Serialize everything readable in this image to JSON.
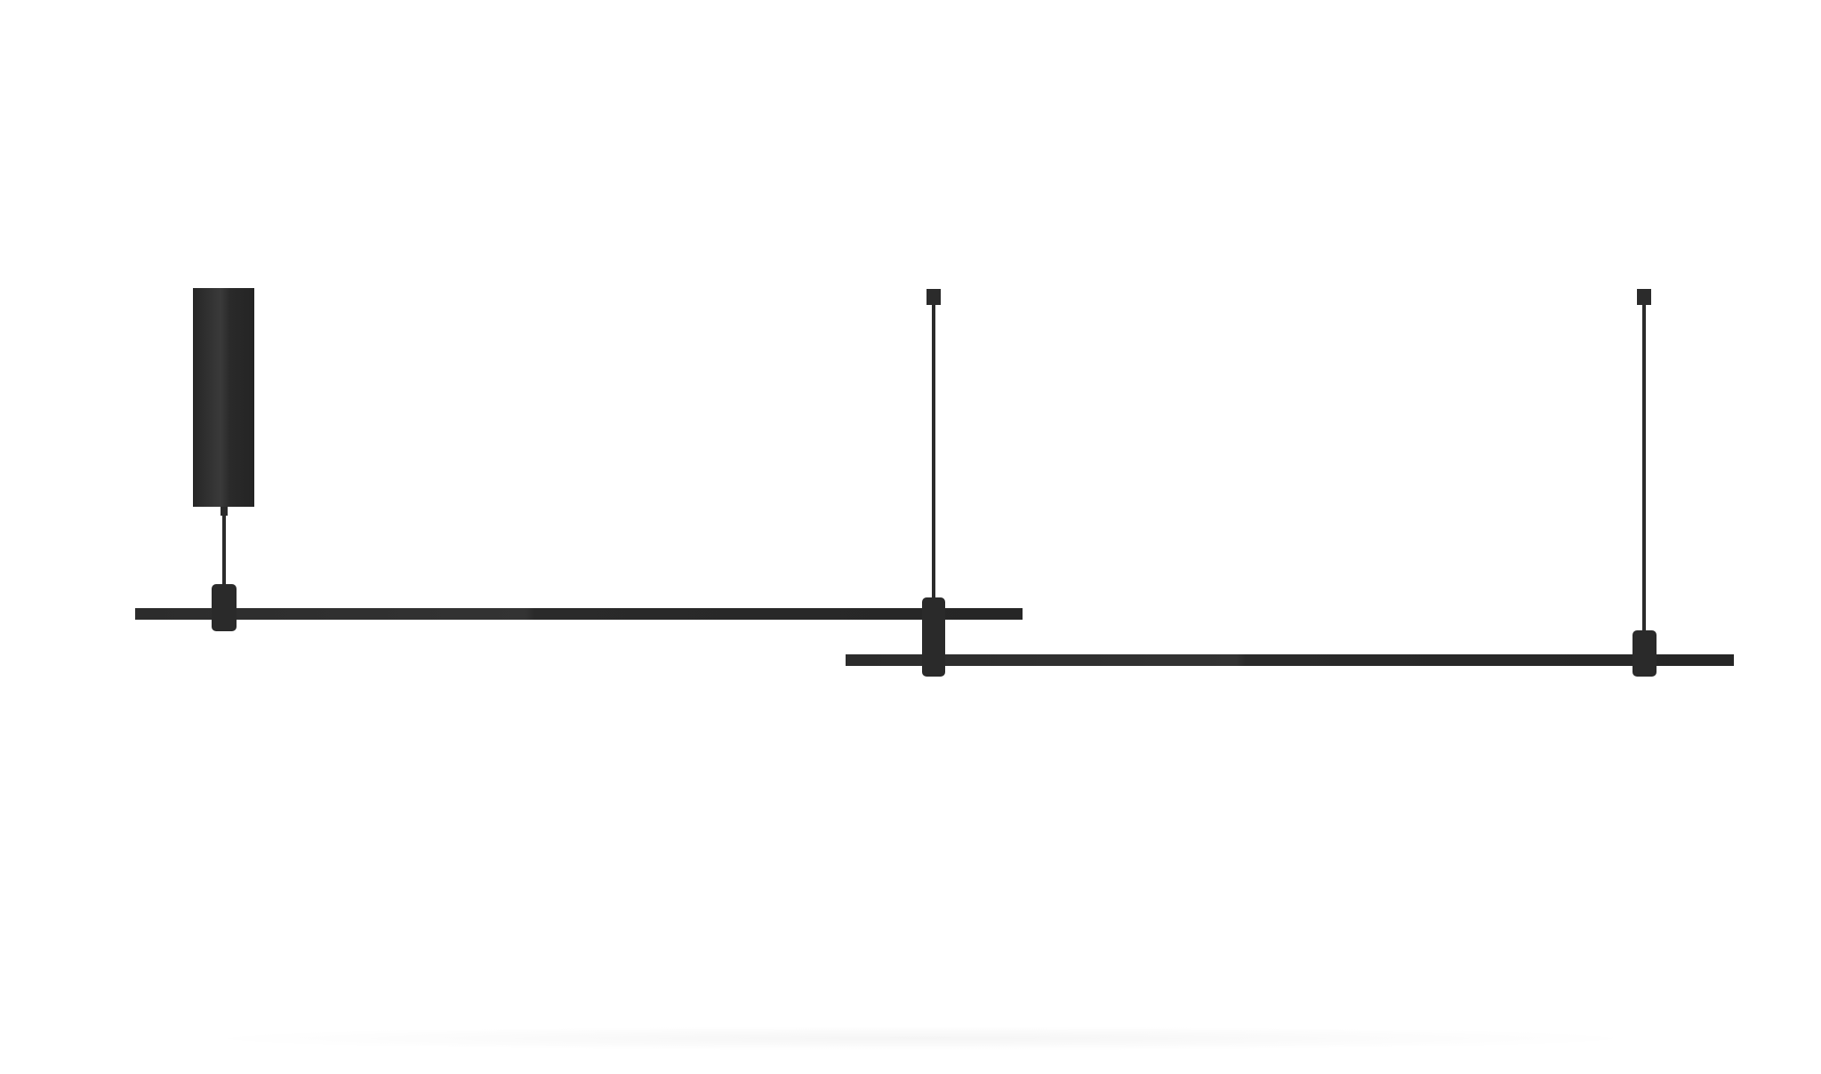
{
  "scene": {
    "subject": "linear-pendant-light",
    "background_color": "#ffffff",
    "metal_color": "#2b2b2b",
    "highlight_color": "#3a3a3a",
    "components": [
      "ceiling-canopy",
      "suspension-rod-left",
      "suspension-rod-middle",
      "suspension-rod-right",
      "light-bar-upper",
      "light-bar-lower",
      "connector-clip-left",
      "connector-clip-middle",
      "connector-clip-right",
      "floor-shadow"
    ]
  }
}
